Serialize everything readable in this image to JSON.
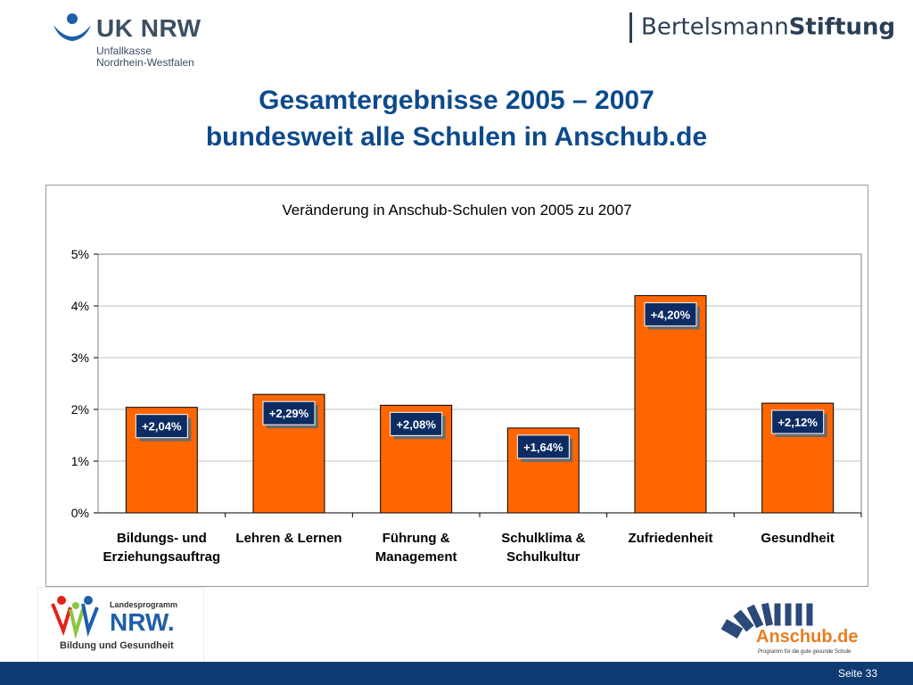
{
  "header": {
    "uk_logo_title": "UK NRW",
    "uk_logo_sub1": "Unfallkasse",
    "uk_logo_sub2": "Nordrhein-Westfalen",
    "bertelsmann_part1": "Bertelsmann",
    "bertelsmann_part2": "Stiftung"
  },
  "slide": {
    "title_line1": "Gesamtergebnisse 2005 – 2007",
    "title_line2": "bundesweit alle Schulen in Anschub.de"
  },
  "chart_data": {
    "type": "bar",
    "title": "Veränderung in Anschub-Schulen von 2005 zu 2007",
    "categories": [
      [
        "Bildungs- und",
        "Erziehungsauftrag"
      ],
      [
        "Lehren & Lernen"
      ],
      [
        "Führung &",
        "Management"
      ],
      [
        "Schulklima &",
        "Schulkultur"
      ],
      [
        "Zufriedenheit"
      ],
      [
        "Gesundheit"
      ]
    ],
    "values": [
      2.04,
      2.29,
      2.08,
      1.64,
      4.2,
      2.12
    ],
    "data_labels": [
      "+2,04%",
      "+2,29%",
      "+2,08%",
      "+1,64%",
      "+4,20%",
      "+2,12%"
    ],
    "y_ticks": [
      "0%",
      "1%",
      "2%",
      "3%",
      "4%",
      "5%"
    ],
    "ylim": [
      0,
      5
    ],
    "grid": true,
    "colors": {
      "bar": "#ff6600",
      "label_box": "#0d2c63",
      "label_shadow": "#6a6a6a"
    }
  },
  "footer": {
    "nrw_logo_line1": "Landesprogramm",
    "nrw_logo_line2": "NRW.",
    "nrw_logo_line3": "Bildung und Gesundheit",
    "anschub_logo_name": "Anschub.de",
    "anschub_logo_sub": "Programm für die gute gesunde Schule",
    "page_label": "Seite 33",
    "bar_color": "#0f3a72"
  }
}
